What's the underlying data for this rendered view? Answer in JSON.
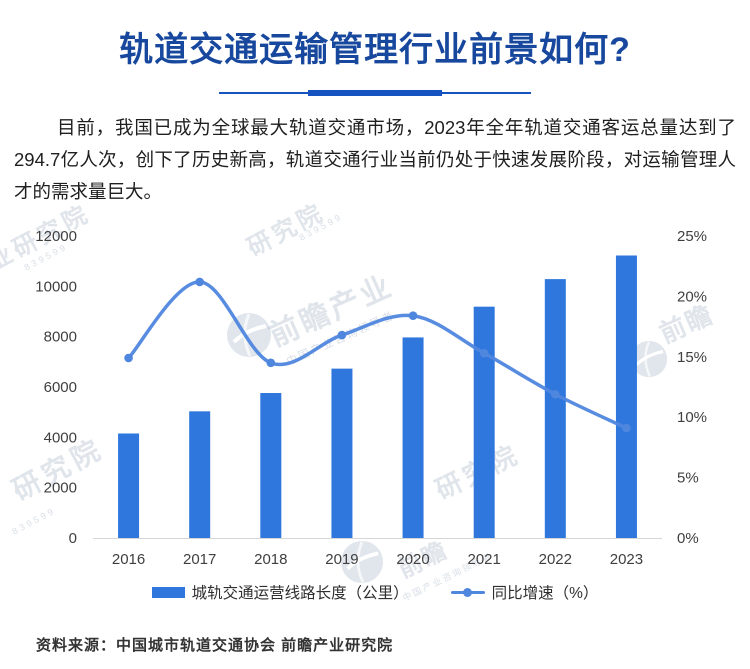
{
  "header": {
    "title": "轨道交通运输管理行业前景如何?"
  },
  "intro": {
    "text": "目前，我国已成为全球最大轨道交通市场，2023年全年轨道交通客运总量达到了294.7亿人次，创下了历史新高，轨道交通行业当前仍处于快速发展阶段，对运输管理人才的需求量巨大。"
  },
  "chart_data": {
    "type": "bar+line",
    "categories": [
      "2016",
      "2017",
      "2018",
      "2019",
      "2020",
      "2021",
      "2022",
      "2023"
    ],
    "series": [
      {
        "name": "城轨交通运营线路长度（公里）",
        "type": "bar",
        "axis": "left",
        "values": [
          4153,
          5033,
          5761,
          6730,
          7970,
          9192,
          10287,
          11225
        ],
        "color": "#2F76DD"
      },
      {
        "name": "同比增速（%）",
        "type": "line",
        "axis": "right",
        "values": [
          14.9,
          21.2,
          14.5,
          16.8,
          18.4,
          15.3,
          11.9,
          9.1
        ],
        "color": "#4F86DE"
      }
    ],
    "left_axis": {
      "min": 0,
      "max": 12000,
      "ticks": [
        0,
        2000,
        4000,
        6000,
        8000,
        10000,
        12000
      ]
    },
    "right_axis": {
      "min": 0,
      "max": 25,
      "ticks": [
        "0%",
        "5%",
        "10%",
        "15%",
        "20%",
        "25%"
      ]
    },
    "grid": false,
    "legend_position": "bottom",
    "title": "",
    "xlabel": "",
    "ylabel": ""
  },
  "source": {
    "text": "资料来源：中国城市轨道交通协会 前瞻产业研究院"
  },
  "watermarks": {
    "brand": "前瞻产业",
    "brand_short": "前瞻",
    "institute": "研究院",
    "institute_frag": "业研究院",
    "tagline": "中国产业咨询领导者",
    "code": "839599"
  },
  "colors": {
    "title": "#17489E",
    "underline": "#1553C0",
    "bar": "#2F76DD",
    "line": "#4F86DE",
    "axis_text": "#3F3F3F",
    "axis_line": "#D6D6D6",
    "body_text": "#1F1F1F",
    "source_text": "#333333"
  }
}
